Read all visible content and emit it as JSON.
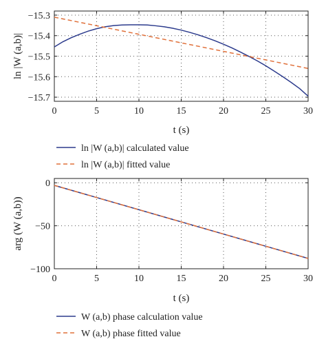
{
  "chart_data": [
    {
      "type": "line",
      "xlabel": "t (s)",
      "ylabel": "ln |W (a,b)|",
      "xlim": [
        0,
        30
      ],
      "ylim": [
        -15.72,
        -15.28
      ],
      "xticks": [
        0,
        5,
        10,
        15,
        20,
        25,
        30
      ],
      "yticks": [
        -15.3,
        -15.4,
        -15.5,
        -15.6,
        -15.7
      ],
      "xtick_labels": [
        "0",
        "5",
        "10",
        "15",
        "20",
        "25",
        "30"
      ],
      "ytick_labels": [
        "−15.3",
        "−15.4",
        "−15.5",
        "−15.6",
        "−15.7"
      ],
      "grid": true,
      "legend_position": "below",
      "series": [
        {
          "name": "ln |W (a,b)| calculated value",
          "color": "#2b3a8c",
          "style": "solid",
          "x": [
            0,
            1,
            2,
            3,
            4,
            5,
            6,
            7,
            8,
            9,
            10,
            11,
            12,
            13,
            14,
            15,
            16,
            17,
            18,
            19,
            20,
            21,
            22,
            23,
            24,
            25,
            26,
            27,
            28,
            29,
            30
          ],
          "y": [
            -15.455,
            -15.43,
            -15.41,
            -15.393,
            -15.378,
            -15.366,
            -15.357,
            -15.351,
            -15.348,
            -15.347,
            -15.347,
            -15.348,
            -15.352,
            -15.357,
            -15.364,
            -15.373,
            -15.384,
            -15.396,
            -15.41,
            -15.425,
            -15.442,
            -15.46,
            -15.48,
            -15.501,
            -15.523,
            -15.547,
            -15.573,
            -15.6,
            -15.628,
            -15.658,
            -15.695
          ]
        },
        {
          "name": "ln |W (a,b)| fitted value",
          "color": "#e0703a",
          "style": "dashed",
          "x": [
            0,
            30
          ],
          "y": [
            -15.31,
            -15.56
          ]
        }
      ]
    },
    {
      "type": "line",
      "xlabel": "t (s)",
      "ylabel": "arg (W (a,b))",
      "xlim": [
        0,
        30
      ],
      "ylim": [
        -100,
        5
      ],
      "xticks": [
        0,
        5,
        10,
        15,
        20,
        25,
        30
      ],
      "yticks": [
        0,
        -50,
        -100
      ],
      "xtick_labels": [
        "0",
        "5",
        "10",
        "15",
        "20",
        "25",
        "30"
      ],
      "ytick_labels": [
        "0",
        "−50",
        "−100"
      ],
      "grid": true,
      "legend_position": "below",
      "series": [
        {
          "name": "W (a,b) phase calculation value",
          "color": "#2b3a8c",
          "style": "solid",
          "x": [
            0,
            30
          ],
          "y": [
            -3,
            -88
          ]
        },
        {
          "name": "W (a,b) phase fitted value",
          "color": "#e0703a",
          "style": "dashed",
          "x": [
            0,
            30
          ],
          "y": [
            -3,
            -88
          ]
        }
      ]
    }
  ]
}
